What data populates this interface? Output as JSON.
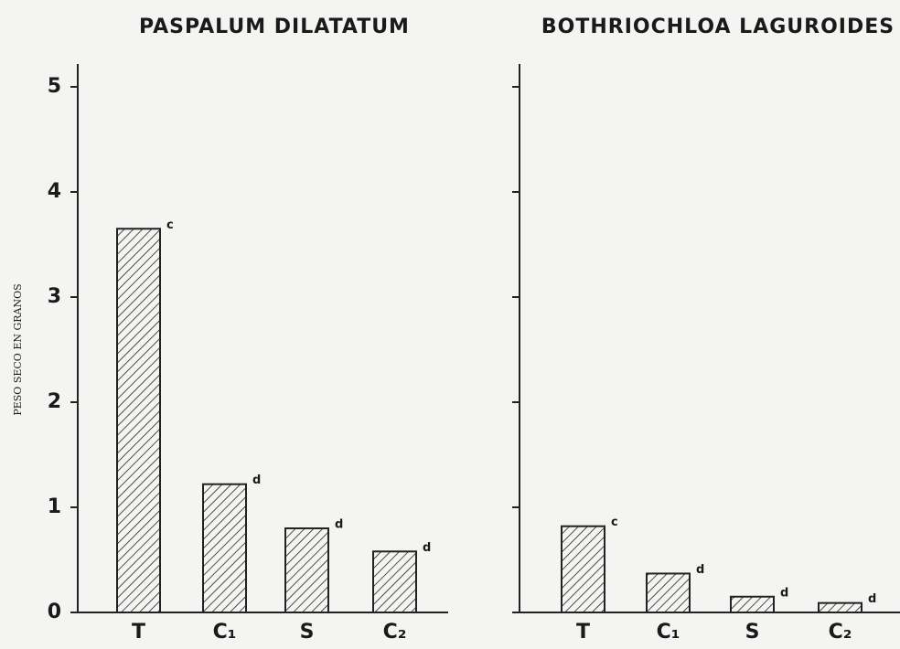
{
  "chart_data": [
    {
      "type": "bar",
      "title": "PASPALUM DILATATUM",
      "ylabel": "PESO SECO EN GRANOS",
      "categories": [
        "T",
        "C₁",
        "S",
        "C₂"
      ],
      "values": [
        3.65,
        1.22,
        0.8,
        0.58
      ],
      "annotations": [
        "c",
        "d",
        "d",
        "d"
      ],
      "ylim": [
        0,
        5
      ],
      "yticks": [
        0,
        1,
        2,
        3,
        4,
        5
      ],
      "color": "#222222"
    },
    {
      "type": "bar",
      "title": "BOTHRIOCHLOA LAGUROIDES",
      "categories": [
        "T",
        "C₁",
        "S",
        "C₂"
      ],
      "values": [
        0.82,
        0.37,
        0.15,
        0.09
      ],
      "annotations": [
        "c",
        "d",
        "d",
        "d"
      ],
      "ylim": [
        0,
        5
      ],
      "yticks": [
        0,
        1,
        2,
        3,
        4,
        5
      ],
      "color": "#222222"
    }
  ]
}
